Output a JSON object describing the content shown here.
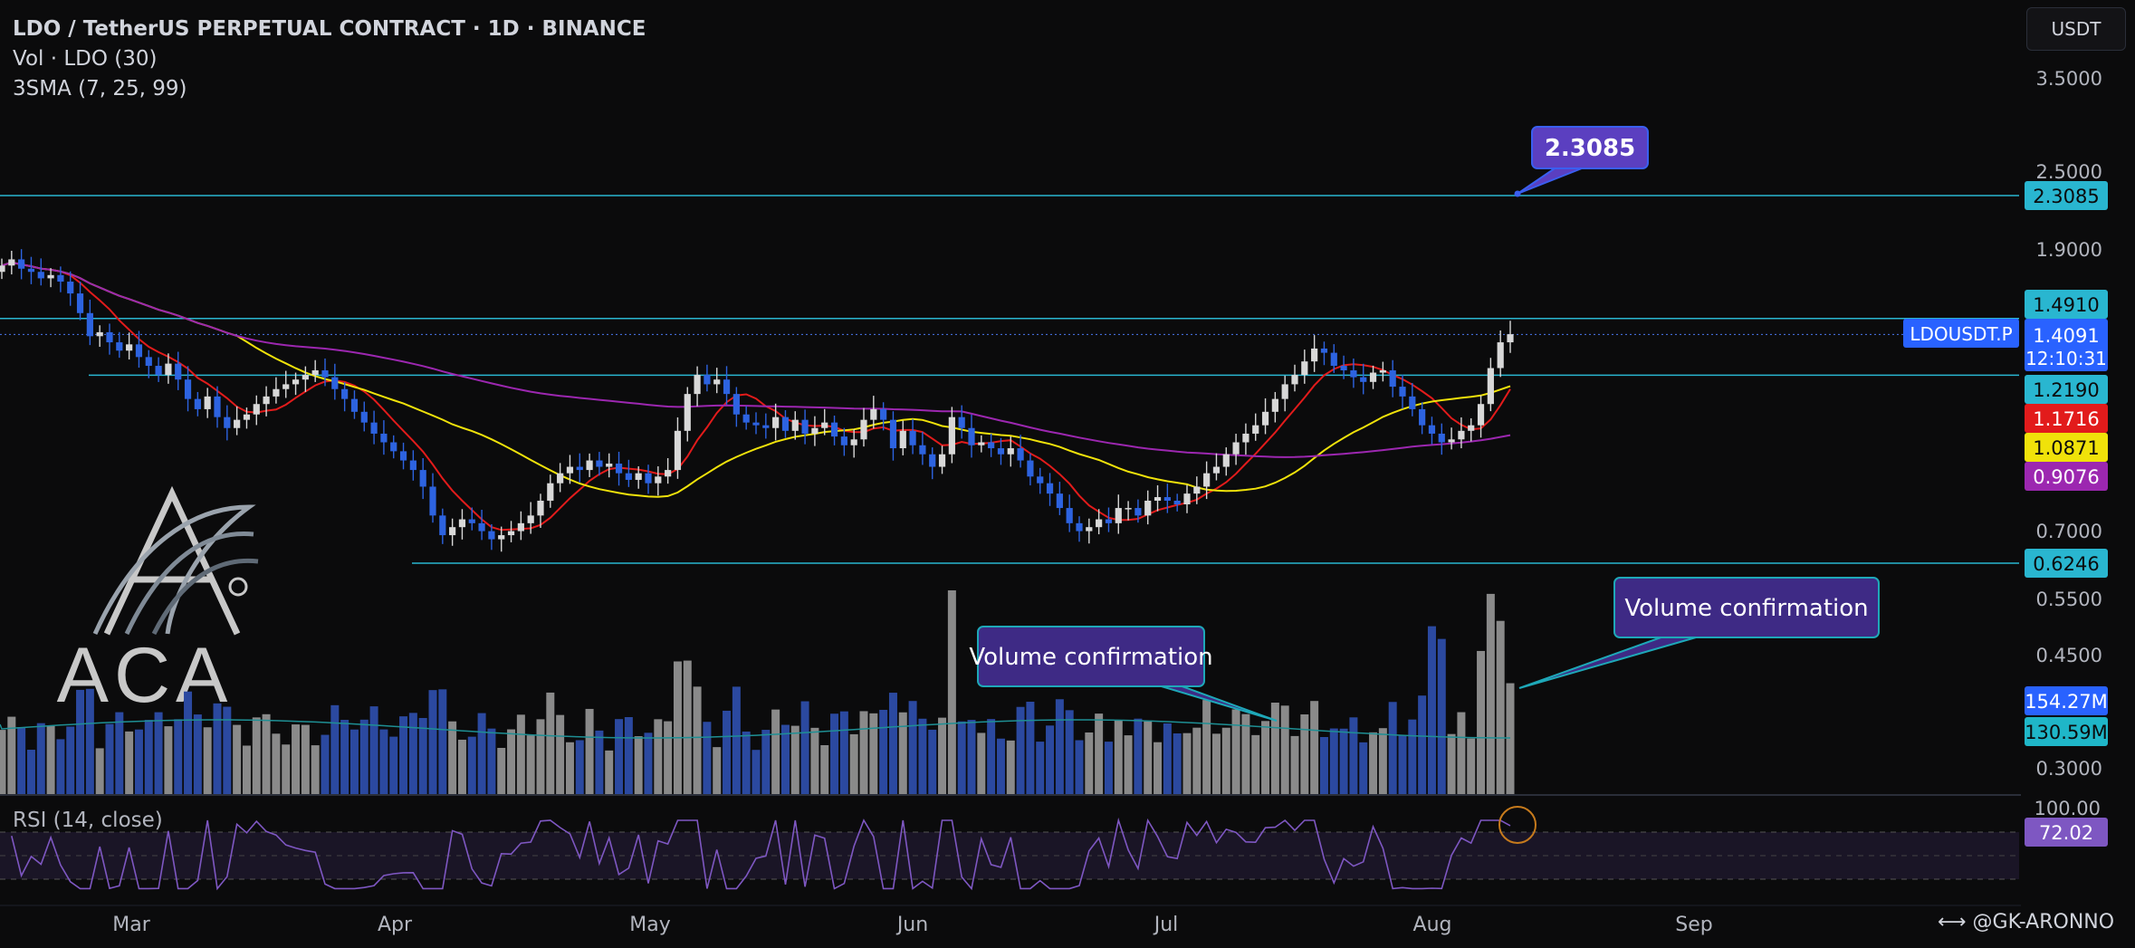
{
  "header": {
    "title": "LDO / TetherUS PERPETUAL CONTRACT · 1D · BINANCE",
    "vol_indicator": "Vol · LDO (30)",
    "sma_indicator": "3SMA (7, 25, 99)",
    "currency_button": "USDT"
  },
  "rsi": {
    "label": "RSI (14, close)",
    "value_tag": "72.02",
    "top_tick": "100.00"
  },
  "watermark": "@GK-ARONNO",
  "logo": {
    "text": "ACA"
  },
  "colors": {
    "background": "#0b0b0c",
    "candle_up": "#d8d8d8",
    "candle_down": "#2d63e0",
    "sma7": "#e21b1b",
    "sma25": "#f0e20a",
    "sma99": "#9c27b0",
    "level_line": "#29b6d0",
    "rsi": "#7e57c2",
    "annotation": "#3e2a85"
  },
  "chart_data": {
    "type": "candlestick",
    "symbol_tag": "LDOUSDT.P",
    "price_axis_ticks": [
      "3.5000",
      "2.5000",
      "1.9000",
      "0.7000",
      "0.5500",
      "0.4500",
      "0.3000"
    ],
    "time_axis_ticks": [
      "Mar",
      "Apr",
      "May",
      "Jun",
      "Jul",
      "Aug",
      "Sep"
    ],
    "last_price": "1.4091",
    "countdown": "12:10:31",
    "horizontal_levels": [
      "2.3085",
      "1.4910",
      "1.2190",
      "0.6246"
    ],
    "sma_values": {
      "sma7": "1.1716",
      "sma25": "1.0871",
      "sma99": "0.9076"
    },
    "volume_tags": [
      "154.27M",
      "130.59M"
    ],
    "annotations": [
      {
        "text": "2.3085"
      },
      {
        "text": "Volume confirmation"
      },
      {
        "text": "Volume confirmation"
      }
    ],
    "close_series": [
      1.8,
      1.84,
      1.78,
      1.76,
      1.72,
      1.74,
      1.7,
      1.63,
      1.52,
      1.4,
      1.42,
      1.37,
      1.33,
      1.36,
      1.3,
      1.26,
      1.22,
      1.27,
      1.2,
      1.12,
      1.08,
      1.13,
      1.05,
      1.01,
      1.04,
      1.06,
      1.1,
      1.13,
      1.16,
      1.18,
      1.2,
      1.22,
      1.24,
      1.21,
      1.16,
      1.12,
      1.07,
      1.03,
      0.99,
      0.96,
      0.93,
      0.9,
      0.87,
      0.82,
      0.74,
      0.69,
      0.71,
      0.73,
      0.72,
      0.7,
      0.68,
      0.69,
      0.7,
      0.72,
      0.74,
      0.78,
      0.83,
      0.86,
      0.88,
      0.87,
      0.9,
      0.88,
      0.89,
      0.86,
      0.84,
      0.86,
      0.83,
      0.85,
      0.87,
      1.0,
      1.14,
      1.22,
      1.18,
      1.2,
      1.14,
      1.06,
      1.03,
      1.02,
      1.01,
      1.05,
      1.0,
      1.04,
      0.99,
      1.01,
      1.03,
      0.98,
      0.95,
      0.97,
      1.04,
      1.08,
      1.04,
      0.94,
      1.0,
      0.95,
      0.92,
      0.88,
      0.92,
      1.05,
      1.01,
      0.95,
      0.96,
      0.94,
      0.92,
      0.94,
      0.9,
      0.85,
      0.83,
      0.8,
      0.76,
      0.72,
      0.7,
      0.71,
      0.73,
      0.72,
      0.76,
      0.76,
      0.74,
      0.78,
      0.79,
      0.78,
      0.77,
      0.8,
      0.82,
      0.86,
      0.88,
      0.92,
      0.96,
      0.99,
      1.02,
      1.07,
      1.12,
      1.18,
      1.22,
      1.28,
      1.34,
      1.32,
      1.26,
      1.24,
      1.21,
      1.19,
      1.23,
      1.24,
      1.17,
      1.13,
      1.08,
      1.02,
      0.99,
      0.96,
      0.97,
      1.0,
      1.02,
      1.1,
      1.25,
      1.37,
      1.41
    ]
  }
}
